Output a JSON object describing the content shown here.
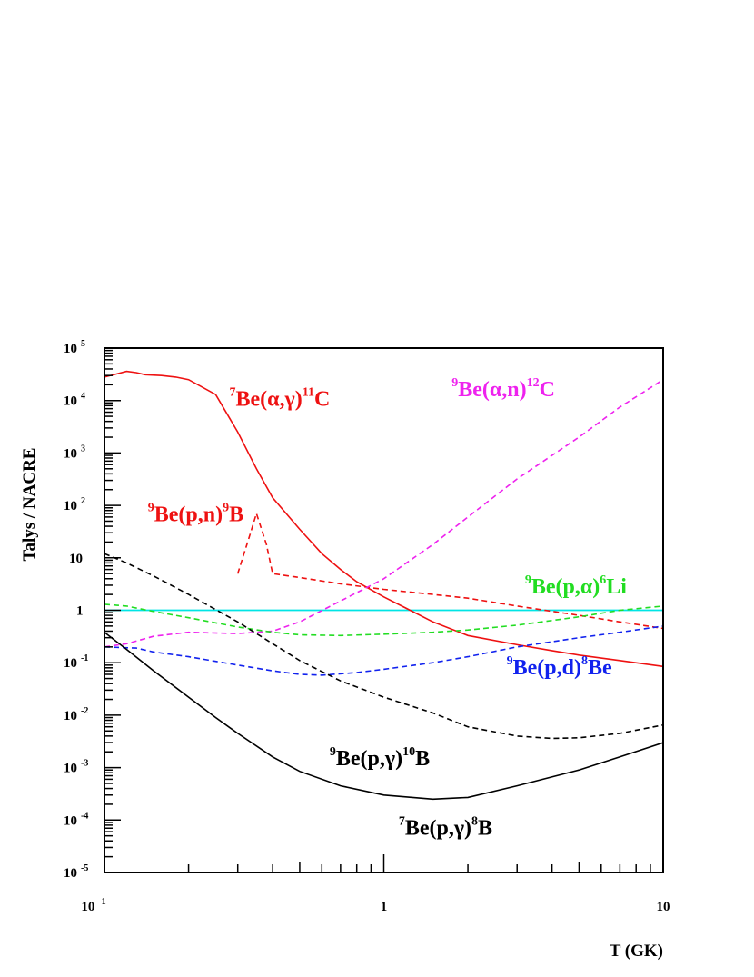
{
  "chart_data": {
    "type": "line",
    "xlabel": "T (GK)",
    "ylabel": "Talys / NACRE",
    "xscale": "log",
    "yscale": "log",
    "xlim": [
      0.1,
      10
    ],
    "ylim": [
      1e-05,
      100000
    ],
    "grid": false,
    "x_tick_labels": [
      {
        "value": 0.1,
        "base": "10",
        "exp": "-1"
      },
      {
        "value": 1,
        "base": "1",
        "exp": ""
      },
      {
        "value": 10,
        "base": "10",
        "exp": ""
      }
    ],
    "y_tick_labels": [
      {
        "value": 100000,
        "base": "10",
        "exp": "5"
      },
      {
        "value": 10000,
        "base": "10",
        "exp": "4"
      },
      {
        "value": 1000,
        "base": "10",
        "exp": "3"
      },
      {
        "value": 100,
        "base": "10",
        "exp": "2"
      },
      {
        "value": 10,
        "base": "10",
        "exp": ""
      },
      {
        "value": 1,
        "base": "1",
        "exp": ""
      },
      {
        "value": 0.1,
        "base": "10",
        "exp": "-1"
      },
      {
        "value": 0.01,
        "base": "10",
        "exp": "-2"
      },
      {
        "value": 0.001,
        "base": "10",
        "exp": "-3"
      },
      {
        "value": 0.0001,
        "base": "10",
        "exp": "-4"
      },
      {
        "value": 1e-05,
        "base": "10",
        "exp": "-5"
      }
    ],
    "reference_line": {
      "y": 1,
      "color": "#00e5e5"
    },
    "series": [
      {
        "color": "#ee1111",
        "dash": "solid",
        "label": {
          "parts": [
            {
              "t": "7",
              "sup": true
            },
            {
              "t": "Be(α,γ)",
              "sup": false
            },
            {
              "t": "11",
              "sup": true
            },
            {
              "t": "C",
              "sup": false
            }
          ],
          "x": 0.28,
          "y": 8000
        },
        "points": [
          [
            0.1,
            28000
          ],
          [
            0.11,
            32000
          ],
          [
            0.12,
            36000
          ],
          [
            0.13,
            34000
          ],
          [
            0.14,
            31000
          ],
          [
            0.16,
            30000
          ],
          [
            0.18,
            28000
          ],
          [
            0.2,
            25000
          ],
          [
            0.25,
            13000
          ],
          [
            0.3,
            2500
          ],
          [
            0.35,
            500
          ],
          [
            0.4,
            140
          ],
          [
            0.5,
            35
          ],
          [
            0.6,
            12
          ],
          [
            0.7,
            6
          ],
          [
            0.8,
            3.5
          ],
          [
            1,
            1.8
          ],
          [
            1.2,
            1.1
          ],
          [
            1.5,
            0.6
          ],
          [
            2,
            0.33
          ],
          [
            3,
            0.22
          ],
          [
            4,
            0.17
          ],
          [
            5,
            0.14
          ],
          [
            7,
            0.11
          ],
          [
            10,
            0.085
          ]
        ]
      },
      {
        "color": "#ee1111",
        "dash": "dashed",
        "label": {
          "parts": [
            {
              "t": "9",
              "sup": true
            },
            {
              "t": "Be(p,n)",
              "sup": false
            },
            {
              "t": "9",
              "sup": true
            },
            {
              "t": "B",
              "sup": false
            }
          ],
          "x": 0.143,
          "y": 50
        },
        "points": [
          [
            0.3,
            5
          ],
          [
            0.33,
            25
          ],
          [
            0.35,
            70
          ],
          [
            0.38,
            18
          ],
          [
            0.4,
            5
          ],
          [
            0.5,
            4.2
          ],
          [
            0.7,
            3.2
          ],
          [
            1,
            2.5
          ],
          [
            1.5,
            2
          ],
          [
            2,
            1.7
          ],
          [
            3,
            1.2
          ],
          [
            5,
            0.8
          ],
          [
            7,
            0.6
          ],
          [
            10,
            0.45
          ]
        ]
      },
      {
        "color": "#ee22ee",
        "dash": "dashed",
        "label": {
          "parts": [
            {
              "t": "9",
              "sup": true
            },
            {
              "t": "Be(α,n)",
              "sup": false
            },
            {
              "t": "12",
              "sup": true
            },
            {
              "t": "C",
              "sup": false
            }
          ],
          "x": 1.75,
          "y": 12000
        },
        "points": [
          [
            0.1,
            0.2
          ],
          [
            0.12,
            0.23
          ],
          [
            0.15,
            0.32
          ],
          [
            0.2,
            0.38
          ],
          [
            0.3,
            0.36
          ],
          [
            0.4,
            0.4
          ],
          [
            0.5,
            0.6
          ],
          [
            0.7,
            1.5
          ],
          [
            1,
            4
          ],
          [
            1.5,
            18
          ],
          [
            2,
            60
          ],
          [
            3,
            320
          ],
          [
            5,
            2000
          ],
          [
            7,
            7500
          ],
          [
            10,
            25000
          ]
        ]
      },
      {
        "color": "#22dd22",
        "dash": "dashed",
        "label": {
          "parts": [
            {
              "t": "9",
              "sup": true
            },
            {
              "t": "Be(p,α)",
              "sup": false
            },
            {
              "t": "6",
              "sup": true
            },
            {
              "t": "Li",
              "sup": false
            }
          ],
          "x": 3.2,
          "y": 2.1
        },
        "points": [
          [
            0.1,
            1.3
          ],
          [
            0.12,
            1.2
          ],
          [
            0.15,
            0.95
          ],
          [
            0.2,
            0.72
          ],
          [
            0.3,
            0.48
          ],
          [
            0.4,
            0.38
          ],
          [
            0.5,
            0.34
          ],
          [
            0.7,
            0.33
          ],
          [
            1,
            0.35
          ],
          [
            1.5,
            0.38
          ],
          [
            2,
            0.42
          ],
          [
            3,
            0.52
          ],
          [
            5,
            0.75
          ],
          [
            7,
            1
          ],
          [
            10,
            1.2
          ]
        ]
      },
      {
        "color": "#1122ee",
        "dash": "dashed",
        "label": {
          "parts": [
            {
              "t": "9",
              "sup": true
            },
            {
              "t": "Be(p,d)",
              "sup": false
            },
            {
              "t": "8",
              "sup": true
            },
            {
              "t": "Be",
              "sup": false
            }
          ],
          "x": 2.75,
          "y": 0.06
        },
        "points": [
          [
            0.1,
            0.2
          ],
          [
            0.13,
            0.19
          ],
          [
            0.15,
            0.16
          ],
          [
            0.2,
            0.13
          ],
          [
            0.3,
            0.09
          ],
          [
            0.4,
            0.07
          ],
          [
            0.5,
            0.06
          ],
          [
            0.6,
            0.058
          ],
          [
            0.8,
            0.065
          ],
          [
            1,
            0.075
          ],
          [
            1.5,
            0.1
          ],
          [
            2,
            0.13
          ],
          [
            3,
            0.2
          ],
          [
            5,
            0.3
          ],
          [
            7,
            0.38
          ],
          [
            10,
            0.5
          ]
        ]
      },
      {
        "color": "#000000",
        "dash": "dashed",
        "label": {
          "parts": [
            {
              "t": "9",
              "sup": true
            },
            {
              "t": "Be(p,γ)",
              "sup": false
            },
            {
              "t": "10",
              "sup": true
            },
            {
              "t": "B",
              "sup": false
            }
          ],
          "x": 0.64,
          "y": 0.0011
        },
        "points": [
          [
            0.1,
            12
          ],
          [
            0.12,
            8
          ],
          [
            0.15,
            4.5
          ],
          [
            0.2,
            2
          ],
          [
            0.3,
            0.6
          ],
          [
            0.5,
            0.11
          ],
          [
            0.7,
            0.045
          ],
          [
            1,
            0.022
          ],
          [
            1.5,
            0.011
          ],
          [
            2,
            0.006
          ],
          [
            3,
            0.004
          ],
          [
            4,
            0.0036
          ],
          [
            5,
            0.0037
          ],
          [
            7,
            0.0045
          ],
          [
            10,
            0.0065
          ]
        ]
      },
      {
        "color": "#000000",
        "dash": "solid",
        "label": {
          "parts": [
            {
              "t": "7",
              "sup": true
            },
            {
              "t": "Be(p,γ)",
              "sup": false
            },
            {
              "t": "8",
              "sup": true
            },
            {
              "t": "B",
              "sup": false
            }
          ],
          "x": 1.13,
          "y": 5.2e-05
        },
        "points": [
          [
            0.1,
            0.38
          ],
          [
            0.12,
            0.18
          ],
          [
            0.15,
            0.07
          ],
          [
            0.2,
            0.022
          ],
          [
            0.25,
            0.009
          ],
          [
            0.3,
            0.0045
          ],
          [
            0.4,
            0.0016
          ],
          [
            0.5,
            0.00085
          ],
          [
            0.7,
            0.00045
          ],
          [
            1,
            0.0003
          ],
          [
            1.5,
            0.00025
          ],
          [
            2,
            0.00027
          ],
          [
            3,
            0.00045
          ],
          [
            5,
            0.0009
          ],
          [
            7,
            0.0016
          ],
          [
            10,
            0.003
          ]
        ]
      }
    ]
  }
}
